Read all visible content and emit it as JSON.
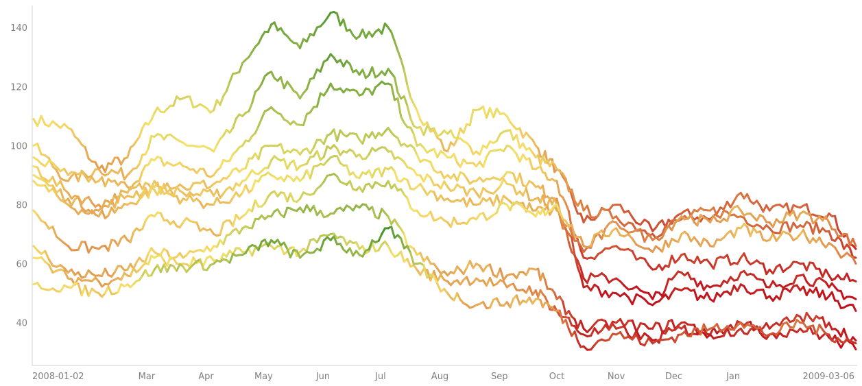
{
  "chart_data": {
    "type": "line",
    "title": "",
    "xlabel": "",
    "ylabel": "",
    "xlim": [
      "2008-01-02",
      "2009-03-06"
    ],
    "ylim": [
      26,
      147
    ],
    "grid": false,
    "legend": "none",
    "color_scale": {
      "type": "diverging",
      "low": "#c0141c",
      "mid": "#f5e16a",
      "high": "#1a7f1c",
      "note": "segment color varies with change of the series: red = falling, green = rising"
    },
    "y_ticks": [
      {
        "value": 40,
        "label": "40"
      },
      {
        "value": 60,
        "label": "60"
      },
      {
        "value": 80,
        "label": "80"
      },
      {
        "value": 100,
        "label": "100"
      },
      {
        "value": 120,
        "label": "120"
      },
      {
        "value": 140,
        "label": "140"
      }
    ],
    "x_ticks": [
      {
        "date": "2008-01-02",
        "label": "2008-01-02"
      },
      {
        "date": "2008-03-01",
        "label": "Mar"
      },
      {
        "date": "2008-04-01",
        "label": "Apr"
      },
      {
        "date": "2008-05-01",
        "label": "May"
      },
      {
        "date": "2008-06-01",
        "label": "Jun"
      },
      {
        "date": "2008-07-01",
        "label": "Jul"
      },
      {
        "date": "2008-08-01",
        "label": "Aug"
      },
      {
        "date": "2008-09-01",
        "label": "Sep"
      },
      {
        "date": "2008-10-01",
        "label": "Oct"
      },
      {
        "date": "2008-11-01",
        "label": "Nov"
      },
      {
        "date": "2008-12-01",
        "label": "Dec"
      },
      {
        "date": "2009-01-01",
        "label": "Jan"
      },
      {
        "date": "2009-03-06",
        "label": "2009-03-06"
      }
    ],
    "series": [
      {
        "x": [
          "2008-01-02",
          "2008-01-20",
          "2008-02-05",
          "2008-02-20",
          "2008-03-05",
          "2008-03-20",
          "2008-04-05",
          "2008-04-20",
          "2008-05-05",
          "2008-05-20",
          "2008-06-05",
          "2008-06-20",
          "2008-07-05",
          "2008-07-20",
          "2008-08-05",
          "2008-08-20",
          "2008-09-05",
          "2008-09-20",
          "2008-10-01",
          "2008-10-15",
          "2008-11-01",
          "2008-11-20",
          "2008-12-05",
          "2008-12-20",
          "2009-01-05",
          "2009-01-20",
          "2009-02-05",
          "2009-02-20",
          "2009-03-06"
        ],
        "y": [
          109,
          106,
          92,
          96,
          111,
          116,
          112,
          128,
          141,
          133,
          145,
          137,
          140,
          112,
          98,
          112,
          110,
          100,
          92,
          74,
          80,
          71,
          77,
          75,
          84,
          78,
          79,
          77,
          65
        ]
      },
      {
        "x": [
          "2008-01-02",
          "2008-01-20",
          "2008-02-05",
          "2008-02-20",
          "2008-03-05",
          "2008-03-20",
          "2008-04-05",
          "2008-04-20",
          "2008-05-05",
          "2008-05-20",
          "2008-06-05",
          "2008-06-20",
          "2008-07-05",
          "2008-07-20",
          "2008-08-05",
          "2008-08-20",
          "2008-09-05",
          "2008-09-20",
          "2008-10-01",
          "2008-10-15",
          "2008-11-01",
          "2008-11-20",
          "2008-12-05",
          "2008-12-20",
          "2009-01-05",
          "2009-01-20",
          "2009-02-05",
          "2009-02-20",
          "2009-03-06"
        ],
        "y": [
          100,
          88,
          92,
          90,
          103,
          101,
          98,
          110,
          125,
          116,
          131,
          124,
          126,
          106,
          104,
          98,
          105,
          96,
          92,
          78,
          76,
          70,
          75,
          78,
          76,
          72,
          73,
          71,
          62
        ]
      },
      {
        "x": [
          "2008-01-02",
          "2008-01-20",
          "2008-02-05",
          "2008-02-20",
          "2008-03-05",
          "2008-03-20",
          "2008-04-05",
          "2008-04-20",
          "2008-05-05",
          "2008-05-20",
          "2008-06-05",
          "2008-06-20",
          "2008-07-05",
          "2008-07-20",
          "2008-08-05",
          "2008-08-20",
          "2008-09-05",
          "2008-09-20",
          "2008-10-01",
          "2008-10-15",
          "2008-11-01",
          "2008-11-20",
          "2008-12-05",
          "2008-12-20",
          "2009-01-05",
          "2009-01-20",
          "2009-02-05",
          "2009-02-20",
          "2009-03-06"
        ],
        "y": [
          96,
          90,
          88,
          86,
          95,
          93,
          90,
          100,
          113,
          107,
          121,
          117,
          121,
          100,
          96,
          93,
          100,
          92,
          88,
          62,
          66,
          58,
          63,
          60,
          62,
          58,
          60,
          56,
          54
        ]
      },
      {
        "x": [
          "2008-01-02",
          "2008-01-20",
          "2008-02-05",
          "2008-02-20",
          "2008-03-05",
          "2008-03-20",
          "2008-04-05",
          "2008-04-20",
          "2008-05-05",
          "2008-05-20",
          "2008-06-05",
          "2008-06-20",
          "2008-07-05",
          "2008-07-20",
          "2008-08-05",
          "2008-08-20",
          "2008-09-05",
          "2008-09-20",
          "2008-10-01",
          "2008-10-15",
          "2008-11-01",
          "2008-11-20",
          "2008-12-05",
          "2008-12-20",
          "2009-01-05",
          "2009-01-20",
          "2009-02-05",
          "2009-02-20",
          "2009-03-06"
        ],
        "y": [
          93,
          84,
          80,
          84,
          88,
          86,
          87,
          92,
          100,
          97,
          104,
          102,
          106,
          97,
          90,
          88,
          91,
          86,
          82,
          55,
          55,
          48,
          57,
          52,
          57,
          52,
          56,
          52,
          48
        ]
      },
      {
        "x": [
          "2008-01-02",
          "2008-01-20",
          "2008-02-05",
          "2008-02-20",
          "2008-03-05",
          "2008-03-20",
          "2008-04-05",
          "2008-04-20",
          "2008-05-05",
          "2008-05-20",
          "2008-06-05",
          "2008-06-20",
          "2008-07-05",
          "2008-07-20",
          "2008-08-05",
          "2008-08-20",
          "2008-09-05",
          "2008-09-20",
          "2008-10-01",
          "2008-10-15",
          "2008-11-01",
          "2008-11-20",
          "2008-12-05",
          "2008-12-20",
          "2009-01-05",
          "2009-01-20",
          "2009-02-05",
          "2009-02-20",
          "2009-03-06"
        ],
        "y": [
          90,
          82,
          78,
          83,
          86,
          84,
          83,
          88,
          95,
          93,
          99,
          97,
          98,
          90,
          86,
          84,
          87,
          82,
          80,
          52,
          50,
          46,
          51,
          48,
          53,
          49,
          51,
          49,
          44
        ]
      },
      {
        "x": [
          "2008-01-02",
          "2008-01-20",
          "2008-02-05",
          "2008-02-20",
          "2008-03-05",
          "2008-03-20",
          "2008-04-05",
          "2008-04-20",
          "2008-05-05",
          "2008-05-20",
          "2008-06-05",
          "2008-06-20",
          "2008-07-05",
          "2008-07-20",
          "2008-08-05",
          "2008-08-20",
          "2008-09-05",
          "2008-09-20",
          "2008-10-01",
          "2008-10-15",
          "2008-11-01",
          "2008-11-20",
          "2008-12-05",
          "2008-12-20",
          "2009-01-05",
          "2009-01-20",
          "2009-02-05",
          "2009-02-20",
          "2009-03-06"
        ],
        "y": [
          88,
          80,
          76,
          80,
          85,
          82,
          80,
          84,
          90,
          88,
          96,
          89,
          92,
          86,
          82,
          80,
          82,
          78,
          78,
          64,
          74,
          68,
          76,
          74,
          78,
          74,
          77,
          74,
          66
        ]
      },
      {
        "x": [
          "2008-01-02",
          "2008-01-20",
          "2008-02-05",
          "2008-02-20",
          "2008-03-05",
          "2008-03-20",
          "2008-04-05",
          "2008-04-20",
          "2008-05-05",
          "2008-05-20",
          "2008-06-05",
          "2008-06-20",
          "2008-07-05",
          "2008-07-20",
          "2008-08-05",
          "2008-08-20",
          "2008-09-05",
          "2008-09-20",
          "2008-10-01",
          "2008-10-15",
          "2008-11-01",
          "2008-11-20",
          "2008-12-05",
          "2008-12-20",
          "2009-01-05",
          "2009-01-20",
          "2009-02-05",
          "2009-02-20",
          "2009-03-06"
        ],
        "y": [
          78,
          66,
          65,
          68,
          76,
          74,
          70,
          76,
          84,
          82,
          90,
          86,
          88,
          78,
          74,
          75,
          80,
          76,
          80,
          66,
          72,
          64,
          70,
          66,
          72,
          68,
          70,
          67,
          60
        ]
      },
      {
        "x": [
          "2008-01-02",
          "2008-01-20",
          "2008-02-05",
          "2008-02-20",
          "2008-03-05",
          "2008-03-20",
          "2008-04-05",
          "2008-04-20",
          "2008-05-05",
          "2008-05-20",
          "2008-06-05",
          "2008-06-20",
          "2008-07-05",
          "2008-07-20",
          "2008-08-05",
          "2008-08-20",
          "2008-09-05",
          "2008-09-20",
          "2008-10-01",
          "2008-10-15",
          "2008-11-01",
          "2008-11-20",
          "2008-12-05",
          "2008-12-20",
          "2009-01-05",
          "2009-01-20",
          "2009-02-05",
          "2009-02-20",
          "2009-03-06"
        ],
        "y": [
          66,
          57,
          56,
          58,
          64,
          62,
          66,
          72,
          76,
          79,
          77,
          79,
          76,
          63,
          56,
          60,
          56,
          58,
          48,
          38,
          40,
          38,
          40,
          36,
          40,
          38,
          42,
          40,
          34
        ]
      },
      {
        "x": [
          "2008-01-02",
          "2008-01-20",
          "2008-02-05",
          "2008-02-20",
          "2008-03-05",
          "2008-03-20",
          "2008-04-05",
          "2008-04-20",
          "2008-05-05",
          "2008-05-20",
          "2008-06-05",
          "2008-06-20",
          "2008-07-05",
          "2008-07-20",
          "2008-08-05",
          "2008-08-20",
          "2008-09-05",
          "2008-09-20",
          "2008-10-01",
          "2008-10-15",
          "2008-11-01",
          "2008-11-20",
          "2008-12-05",
          "2008-12-20",
          "2009-01-05",
          "2009-01-20",
          "2009-02-05",
          "2009-02-20",
          "2009-03-06"
        ],
        "y": [
          62,
          55,
          54,
          56,
          62,
          60,
          61,
          64,
          66,
          64,
          70,
          65,
          66,
          58,
          54,
          55,
          52,
          51,
          44,
          36,
          38,
          34,
          38,
          36,
          38,
          36,
          38,
          35,
          31
        ]
      },
      {
        "x": [
          "2008-01-02",
          "2008-01-20",
          "2008-02-05",
          "2008-02-20",
          "2008-03-05",
          "2008-03-20",
          "2008-04-05",
          "2008-04-20",
          "2008-05-05",
          "2008-05-20",
          "2008-06-05",
          "2008-06-20",
          "2008-07-05",
          "2008-07-20",
          "2008-08-05",
          "2008-08-20",
          "2008-09-05",
          "2008-09-20",
          "2008-10-01",
          "2008-10-15",
          "2008-11-01",
          "2008-11-20",
          "2008-12-05",
          "2008-12-20",
          "2009-01-05",
          "2009-01-20",
          "2009-02-05",
          "2009-02-20",
          "2009-03-06"
        ],
        "y": [
          53,
          52,
          50,
          53,
          58,
          59,
          60,
          63,
          68,
          62,
          68,
          63,
          72,
          60,
          50,
          46,
          47,
          48,
          44,
          32,
          36,
          33,
          36,
          38,
          40,
          36,
          40,
          36,
          33
        ]
      }
    ]
  }
}
